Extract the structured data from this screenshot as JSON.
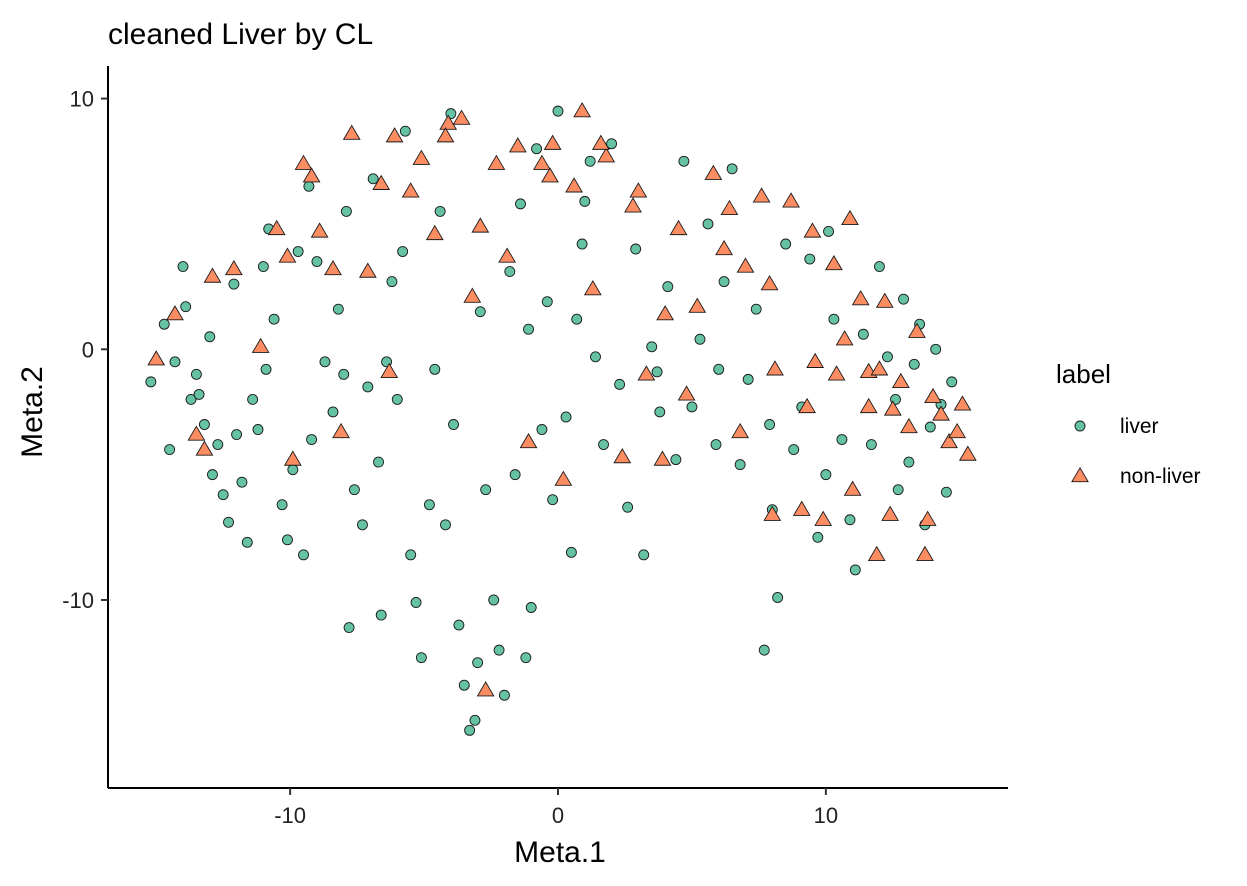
{
  "chart_data": {
    "type": "scatter",
    "title": "cleaned Liver by CL",
    "xlabel": "Meta.1",
    "ylabel": "Meta.2",
    "xlim": [
      -16.8,
      16.8
    ],
    "ylim": [
      -17.5,
      11.3
    ],
    "xticks": [
      -10,
      0,
      10
    ],
    "yticks": [
      -10,
      0,
      10
    ],
    "xtick_labels": [
      "-10",
      "0",
      "10"
    ],
    "ytick_labels": [
      "-10",
      "0",
      "10"
    ],
    "grid": false,
    "legend": {
      "title": "label",
      "placement": "right"
    },
    "series": [
      {
        "name": "liver",
        "marker": "circle",
        "color": "#66C2A5",
        "points": [
          [
            -15.2,
            -1.3
          ],
          [
            -14.7,
            1.0
          ],
          [
            -14.5,
            -4.0
          ],
          [
            -14.3,
            -0.5
          ],
          [
            -14.0,
            3.3
          ],
          [
            -13.9,
            1.7
          ],
          [
            -13.7,
            -2.0
          ],
          [
            -13.5,
            -1.0
          ],
          [
            -13.2,
            -3.0
          ],
          [
            -13.0,
            0.5
          ],
          [
            -12.9,
            -5.0
          ],
          [
            -12.7,
            -3.8
          ],
          [
            -12.5,
            -5.8
          ],
          [
            -12.3,
            -6.9
          ],
          [
            -12.0,
            -3.4
          ],
          [
            -11.8,
            -5.3
          ],
          [
            -11.6,
            -7.7
          ],
          [
            -11.4,
            -2.0
          ],
          [
            -11.2,
            -3.2
          ],
          [
            -11.0,
            3.3
          ],
          [
            -10.8,
            4.8
          ],
          [
            -10.6,
            1.2
          ],
          [
            -10.3,
            -6.2
          ],
          [
            -10.1,
            -7.6
          ],
          [
            -9.9,
            -4.8
          ],
          [
            -9.7,
            3.9
          ],
          [
            -9.5,
            -8.2
          ],
          [
            -9.3,
            6.5
          ],
          [
            -9.0,
            3.5
          ],
          [
            -8.7,
            -0.5
          ],
          [
            -8.4,
            -2.5
          ],
          [
            -8.2,
            1.6
          ],
          [
            -8.0,
            -1.0
          ],
          [
            -7.8,
            -11.1
          ],
          [
            -7.6,
            -5.6
          ],
          [
            -7.3,
            -7.0
          ],
          [
            -7.1,
            -1.5
          ],
          [
            -6.9,
            6.8
          ],
          [
            -6.7,
            -4.5
          ],
          [
            -6.4,
            -0.5
          ],
          [
            -6.2,
            2.7
          ],
          [
            -6.0,
            -2.0
          ],
          [
            -5.8,
            3.9
          ],
          [
            -5.5,
            -8.2
          ],
          [
            -5.3,
            -10.1
          ],
          [
            -5.1,
            -12.3
          ],
          [
            -4.8,
            -6.2
          ],
          [
            -4.6,
            -0.8
          ],
          [
            -4.4,
            5.5
          ],
          [
            -4.2,
            -7.0
          ],
          [
            -3.9,
            -3.0
          ],
          [
            -3.7,
            -11.0
          ],
          [
            -3.5,
            -13.4
          ],
          [
            -3.3,
            -15.2
          ],
          [
            -3.1,
            -14.8
          ],
          [
            -2.9,
            1.5
          ],
          [
            -2.7,
            -5.6
          ],
          [
            -2.4,
            -10.0
          ],
          [
            -2.2,
            -12.0
          ],
          [
            -2.0,
            -13.8
          ],
          [
            -1.8,
            3.1
          ],
          [
            -1.6,
            -5.0
          ],
          [
            -1.4,
            5.8
          ],
          [
            -1.2,
            -12.3
          ],
          [
            -1.0,
            -10.3
          ],
          [
            -0.8,
            8.0
          ],
          [
            -0.6,
            -3.2
          ],
          [
            -0.4,
            1.9
          ],
          [
            -0.2,
            -6.0
          ],
          [
            0.0,
            9.5
          ],
          [
            0.3,
            -2.7
          ],
          [
            0.5,
            -8.1
          ],
          [
            0.7,
            1.2
          ],
          [
            0.9,
            4.2
          ],
          [
            1.2,
            7.5
          ],
          [
            1.4,
            -0.3
          ],
          [
            1.7,
            -3.8
          ],
          [
            2.0,
            8.2
          ],
          [
            2.3,
            -1.4
          ],
          [
            2.6,
            -6.3
          ],
          [
            2.9,
            4.0
          ],
          [
            3.2,
            -8.2
          ],
          [
            3.5,
            0.1
          ],
          [
            3.8,
            -2.5
          ],
          [
            4.1,
            2.5
          ],
          [
            4.4,
            -4.4
          ],
          [
            4.7,
            7.5
          ],
          [
            5.0,
            -2.3
          ],
          [
            5.3,
            0.4
          ],
          [
            5.6,
            5.0
          ],
          [
            5.9,
            -3.8
          ],
          [
            6.2,
            2.7
          ],
          [
            6.5,
            7.2
          ],
          [
            6.8,
            -4.6
          ],
          [
            7.1,
            -1.2
          ],
          [
            7.4,
            1.6
          ],
          [
            7.7,
            -12.0
          ],
          [
            7.9,
            -3.0
          ],
          [
            8.2,
            -9.9
          ],
          [
            8.5,
            4.2
          ],
          [
            8.8,
            -4.0
          ],
          [
            9.1,
            -2.3
          ],
          [
            9.4,
            3.6
          ],
          [
            9.7,
            -7.5
          ],
          [
            10.0,
            -5.0
          ],
          [
            10.3,
            1.2
          ],
          [
            10.6,
            -3.6
          ],
          [
            10.9,
            -6.8
          ],
          [
            11.1,
            -8.8
          ],
          [
            11.4,
            0.6
          ],
          [
            11.7,
            -3.8
          ],
          [
            12.0,
            3.3
          ],
          [
            12.3,
            -0.3
          ],
          [
            12.6,
            -2.0
          ],
          [
            12.9,
            2.0
          ],
          [
            13.1,
            -4.5
          ],
          [
            13.3,
            -0.6
          ],
          [
            13.5,
            1.0
          ],
          [
            13.7,
            -7.0
          ],
          [
            13.9,
            -3.1
          ],
          [
            14.1,
            0.0
          ],
          [
            14.3,
            -2.2
          ],
          [
            14.5,
            -5.7
          ],
          [
            14.7,
            -1.3
          ],
          [
            -13.4,
            -1.8
          ],
          [
            -12.1,
            2.6
          ],
          [
            -10.9,
            -0.8
          ],
          [
            -9.2,
            -3.6
          ],
          [
            -7.9,
            5.5
          ],
          [
            -6.6,
            -10.6
          ],
          [
            -5.7,
            8.7
          ],
          [
            -4.0,
            9.4
          ],
          [
            -3.0,
            -12.5
          ],
          [
            -1.1,
            0.8
          ],
          [
            1.0,
            5.9
          ],
          [
            3.7,
            -0.9
          ],
          [
            6.0,
            -0.8
          ],
          [
            8.0,
            -6.4
          ],
          [
            10.1,
            4.7
          ],
          [
            12.7,
            -5.6
          ]
        ]
      },
      {
        "name": "non-liver",
        "marker": "triangle",
        "color": "#FC8D62",
        "points": [
          [
            -15.0,
            -0.4
          ],
          [
            -14.3,
            1.4
          ],
          [
            -13.5,
            -3.4
          ],
          [
            -13.2,
            -4.0
          ],
          [
            -12.9,
            2.9
          ],
          [
            -12.1,
            3.2
          ],
          [
            -11.1,
            0.1
          ],
          [
            -10.5,
            4.8
          ],
          [
            -10.1,
            3.7
          ],
          [
            -9.9,
            -4.4
          ],
          [
            -9.5,
            7.4
          ],
          [
            -9.2,
            6.9
          ],
          [
            -8.9,
            4.7
          ],
          [
            -8.4,
            3.2
          ],
          [
            -8.1,
            -3.3
          ],
          [
            -7.7,
            8.6
          ],
          [
            -7.1,
            3.1
          ],
          [
            -6.6,
            6.6
          ],
          [
            -6.3,
            -0.9
          ],
          [
            -6.1,
            8.5
          ],
          [
            -5.5,
            6.3
          ],
          [
            -5.1,
            7.6
          ],
          [
            -4.6,
            4.6
          ],
          [
            -4.1,
            9.0
          ],
          [
            -3.6,
            9.2
          ],
          [
            -3.2,
            2.1
          ],
          [
            -2.7,
            -13.6
          ],
          [
            -2.3,
            7.4
          ],
          [
            -1.9,
            3.7
          ],
          [
            -1.5,
            8.1
          ],
          [
            -1.1,
            -3.7
          ],
          [
            -0.6,
            7.4
          ],
          [
            -0.2,
            8.2
          ],
          [
            0.2,
            -5.2
          ],
          [
            0.6,
            6.5
          ],
          [
            0.9,
            9.5
          ],
          [
            1.3,
            2.4
          ],
          [
            1.8,
            7.7
          ],
          [
            2.4,
            -4.3
          ],
          [
            2.8,
            5.7
          ],
          [
            3.3,
            -1.0
          ],
          [
            3.9,
            -4.4
          ],
          [
            4.5,
            4.8
          ],
          [
            5.2,
            1.7
          ],
          [
            5.8,
            7.0
          ],
          [
            6.4,
            5.6
          ],
          [
            7.0,
            3.3
          ],
          [
            7.6,
            6.1
          ],
          [
            8.1,
            -0.8
          ],
          [
            8.7,
            5.9
          ],
          [
            9.1,
            -6.4
          ],
          [
            9.5,
            4.7
          ],
          [
            9.9,
            -6.8
          ],
          [
            10.3,
            3.4
          ],
          [
            10.7,
            0.4
          ],
          [
            11.0,
            -5.6
          ],
          [
            11.3,
            2.0
          ],
          [
            11.6,
            -0.9
          ],
          [
            11.9,
            -8.2
          ],
          [
            12.2,
            1.9
          ],
          [
            12.5,
            -2.4
          ],
          [
            12.8,
            -1.3
          ],
          [
            13.1,
            -3.1
          ],
          [
            13.4,
            0.7
          ],
          [
            13.7,
            -8.2
          ],
          [
            14.0,
            -1.9
          ],
          [
            14.3,
            -2.6
          ],
          [
            14.6,
            -3.7
          ],
          [
            14.9,
            -3.3
          ],
          [
            15.1,
            -2.2
          ],
          [
            15.3,
            -4.2
          ],
          [
            -4.2,
            8.5
          ],
          [
            -2.9,
            4.9
          ],
          [
            -0.3,
            6.9
          ],
          [
            1.6,
            8.2
          ],
          [
            4.0,
            1.4
          ],
          [
            6.8,
            -3.3
          ],
          [
            8.0,
            -6.6
          ],
          [
            9.6,
            -0.5
          ],
          [
            10.9,
            5.2
          ],
          [
            12.4,
            -6.6
          ],
          [
            13.8,
            -6.8
          ],
          [
            11.6,
            -2.3
          ],
          [
            12.0,
            -0.8
          ],
          [
            10.4,
            -1.0
          ],
          [
            9.3,
            -2.3
          ],
          [
            7.9,
            2.6
          ],
          [
            6.2,
            4.0
          ],
          [
            4.8,
            -1.8
          ],
          [
            3.0,
            6.3
          ]
        ]
      }
    ]
  }
}
